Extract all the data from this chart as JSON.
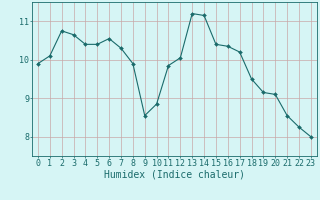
{
  "x": [
    0,
    1,
    2,
    3,
    4,
    5,
    6,
    7,
    8,
    9,
    10,
    11,
    12,
    13,
    14,
    15,
    16,
    17,
    18,
    19,
    20,
    21,
    22,
    23
  ],
  "y": [
    9.9,
    10.1,
    10.75,
    10.65,
    10.4,
    10.4,
    10.55,
    10.3,
    9.9,
    8.55,
    8.85,
    9.85,
    10.05,
    11.2,
    11.15,
    10.4,
    10.35,
    10.2,
    9.5,
    9.15,
    9.1,
    8.55,
    8.25,
    8.0
  ],
  "line_color": "#1a6b6b",
  "marker": "D",
  "marker_size": 2.0,
  "bg_color": "#d6f5f5",
  "grid_color": "#c8a8a8",
  "xlabel": "Humidex (Indice chaleur)",
  "xlabel_fontsize": 7,
  "tick_fontsize": 6,
  "tick_color": "#1a6b6b",
  "ylim": [
    7.5,
    11.5
  ],
  "xlim": [
    -0.5,
    23.5
  ],
  "yticks": [
    8,
    9,
    10,
    11
  ],
  "xticks": [
    0,
    1,
    2,
    3,
    4,
    5,
    6,
    7,
    8,
    9,
    10,
    11,
    12,
    13,
    14,
    15,
    16,
    17,
    18,
    19,
    20,
    21,
    22,
    23
  ]
}
